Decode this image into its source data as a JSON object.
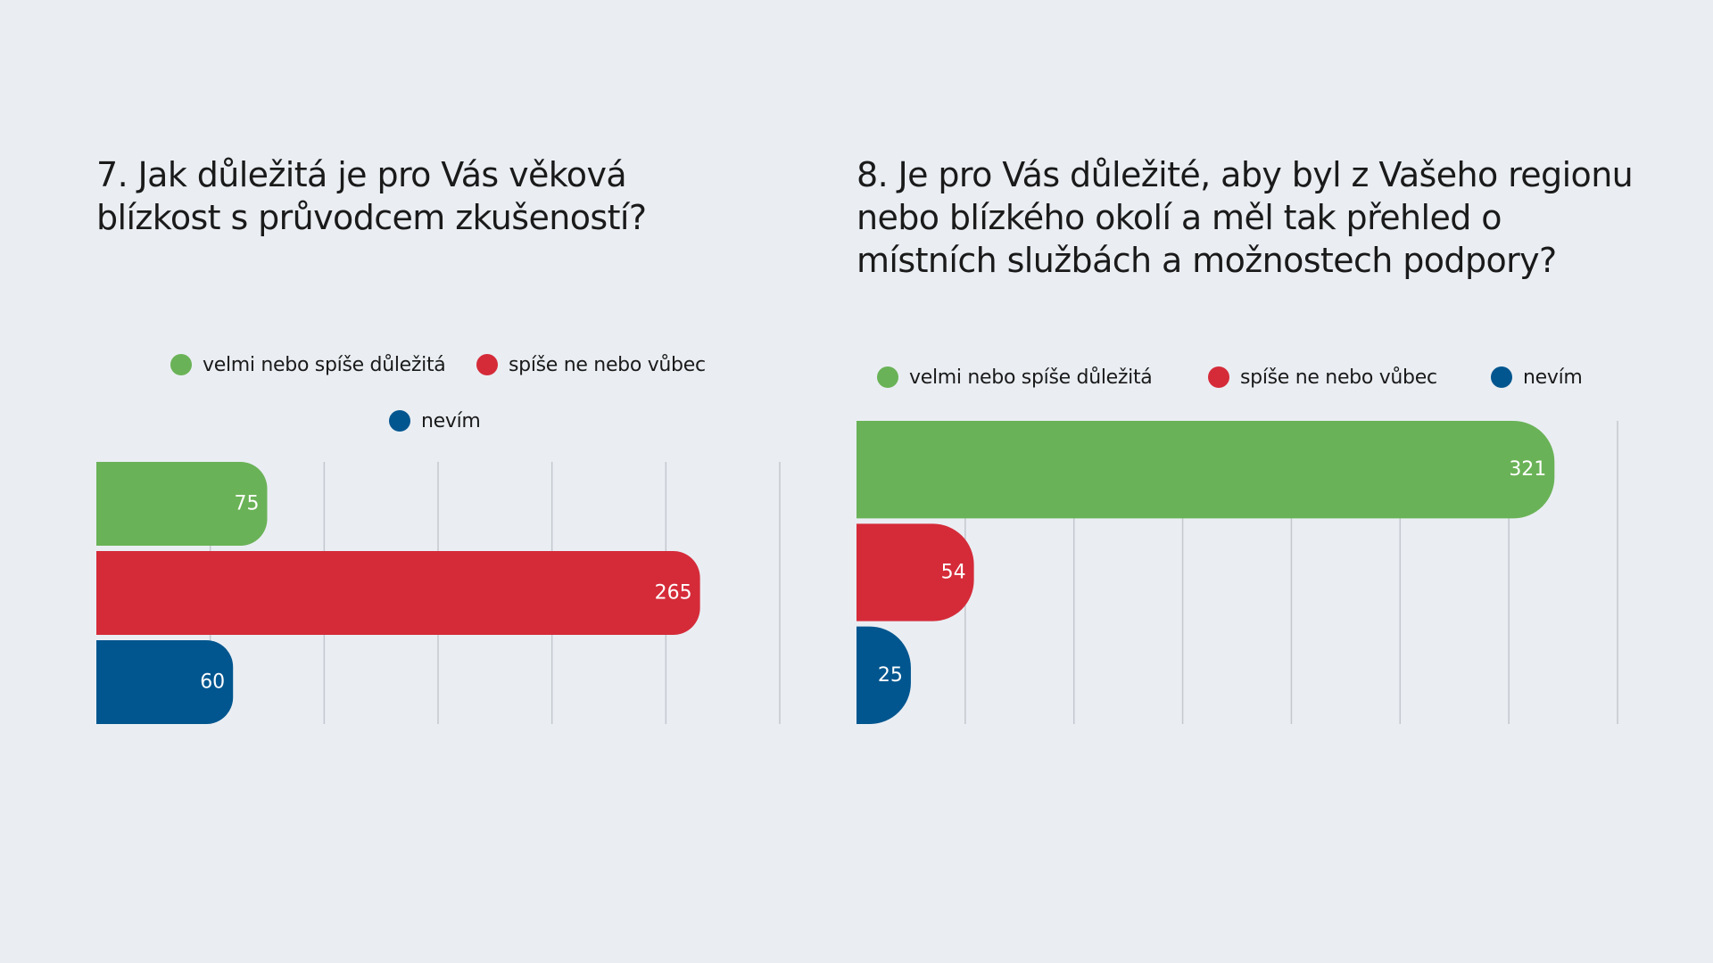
{
  "colors": {
    "background": "#eaeef3",
    "green": "#6ab257",
    "red": "#d52b39",
    "blue": "#02568f"
  },
  "chart_data": [
    {
      "type": "bar",
      "orientation": "horizontal",
      "title": "7. Jak důležitá je pro Vás věková blízkost s průvodcem zkušeností?",
      "title_lines": [
        "7. Jak důležitá je pro Vás věková",
        "blízkost s průvodcem zkušeností?"
      ],
      "categories": [
        "velmi nebo spíše důležitá",
        "spíše ne nebo vůbec",
        "nevím"
      ],
      "values": [
        75,
        265,
        60
      ],
      "data_labels": [
        "75",
        "265",
        "60"
      ],
      "colors": [
        "#6ab257",
        "#d52b39",
        "#02568f"
      ],
      "xlim": [
        0,
        300
      ],
      "grid": true,
      "legend_position": "top"
    },
    {
      "type": "bar",
      "orientation": "horizontal",
      "title": "8. Je pro Vás důležité, aby byl z Vašeho regionu nebo blízkého okolí a měl tak přehled o místních službách a možnostech podpory?",
      "title_lines": [
        "8. Je pro Vás důležité, aby byl z Vašeho regionu",
        "nebo blízkého okolí a měl tak přehled o",
        "místních službách a možnostech podpory?"
      ],
      "categories": [
        "velmi nebo spíše důležitá",
        "spíše ne nebo vůbec",
        "nevím"
      ],
      "values": [
        321,
        54,
        25
      ],
      "data_labels": [
        "321",
        "54",
        "25"
      ],
      "colors": [
        "#6ab257",
        "#d52b39",
        "#02568f"
      ],
      "xlim": [
        0,
        350
      ],
      "grid": true,
      "legend_position": "top"
    }
  ]
}
